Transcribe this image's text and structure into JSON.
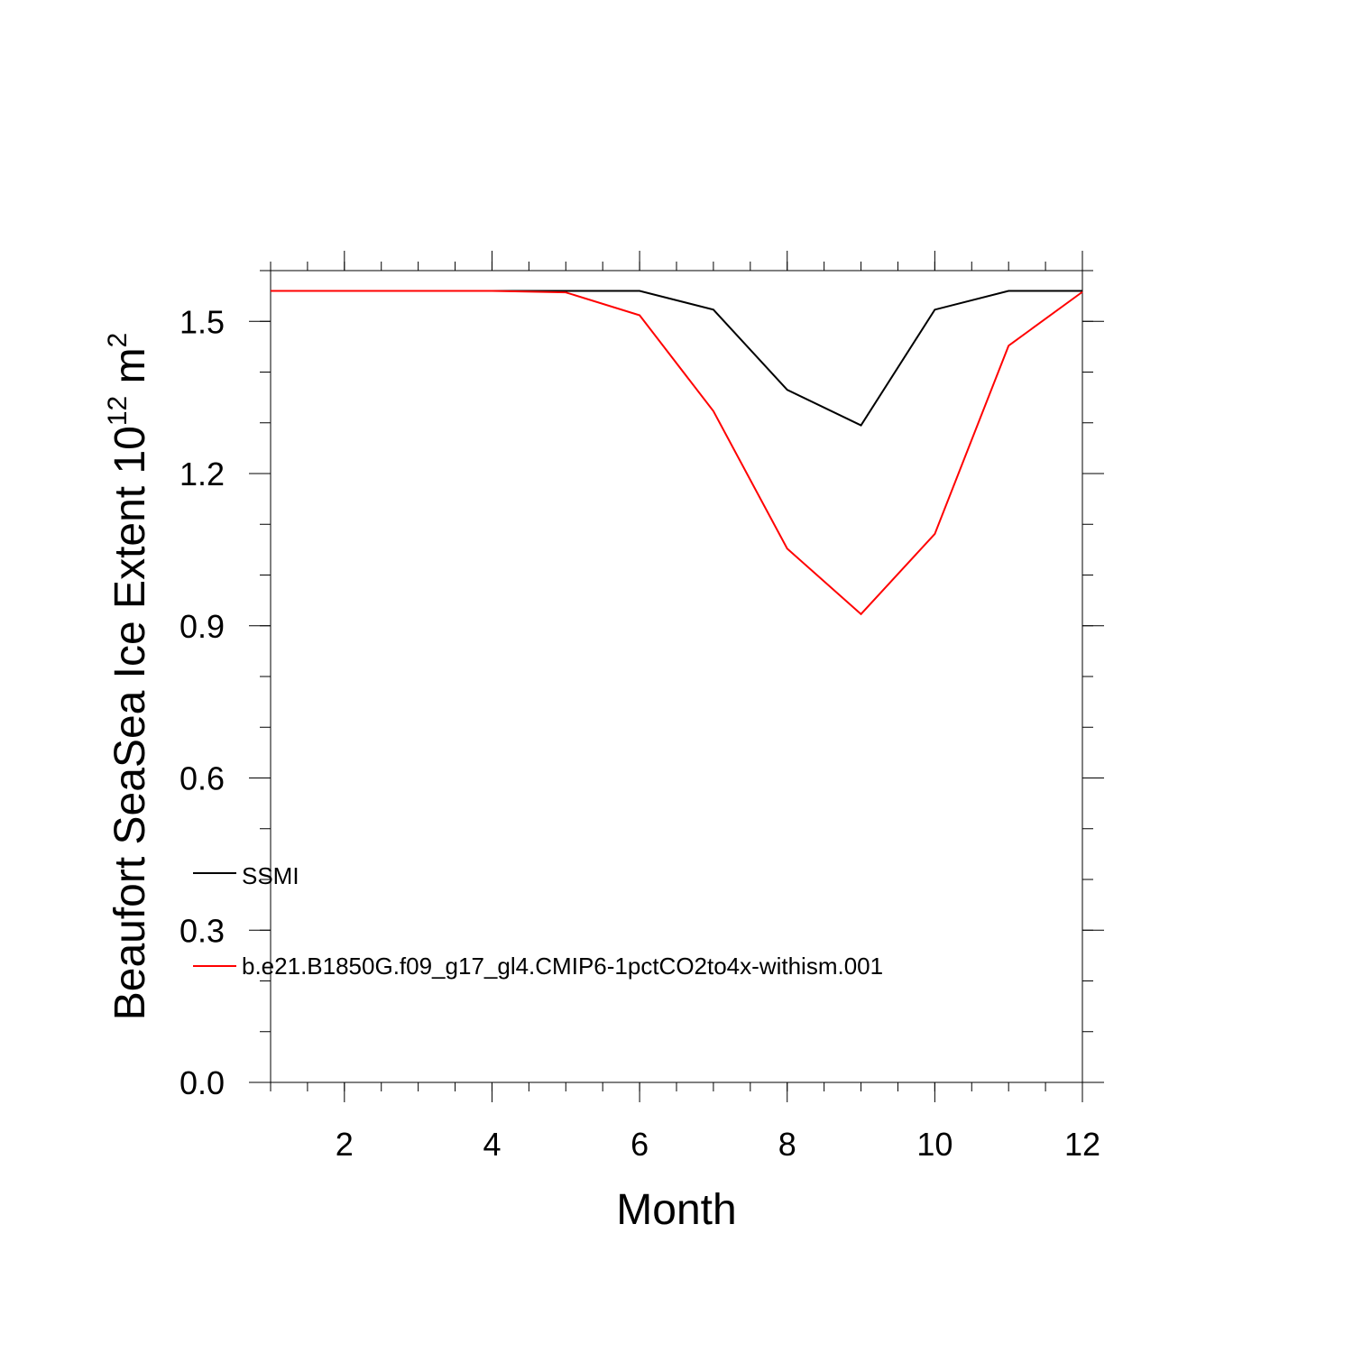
{
  "chart_data": {
    "type": "line",
    "x": [
      1,
      2,
      3,
      4,
      5,
      6,
      7,
      8,
      9,
      10,
      11,
      12
    ],
    "series": [
      {
        "name": "SSMI",
        "color": "#000000",
        "values": [
          1.56,
          1.56,
          1.56,
          1.56,
          1.56,
          1.56,
          1.523,
          1.365,
          1.295,
          1.523,
          1.56,
          1.56
        ]
      },
      {
        "name": "b.e21.B1850G.f09_g17_gl4.CMIP6-1pctCO2to4x-withism.001",
        "color": "#ff0000",
        "values": [
          1.56,
          1.56,
          1.56,
          1.56,
          1.557,
          1.512,
          1.323,
          1.052,
          0.923,
          1.081,
          1.452,
          1.558
        ]
      }
    ],
    "xlabel": "Month",
    "ylabel": {
      "text": "Beaufort SeaSea Ice Extent 10",
      "exp1": "12",
      "unit": " m",
      "exp2": "2"
    },
    "xlim": [
      1,
      12
    ],
    "ylim": [
      0,
      1.6
    ],
    "xticks": [
      2,
      4,
      6,
      8,
      10,
      12
    ],
    "xtick_labels": [
      "2",
      "4",
      "6",
      "8",
      "10",
      "12"
    ],
    "yticks": [
      0.0,
      0.3,
      0.6,
      0.9,
      1.2,
      1.5
    ],
    "ytick_labels": [
      "0.0",
      "0.3",
      "0.6",
      "0.9",
      "1.2",
      "1.5"
    ],
    "grid": false,
    "legend_position": "lower-left"
  }
}
